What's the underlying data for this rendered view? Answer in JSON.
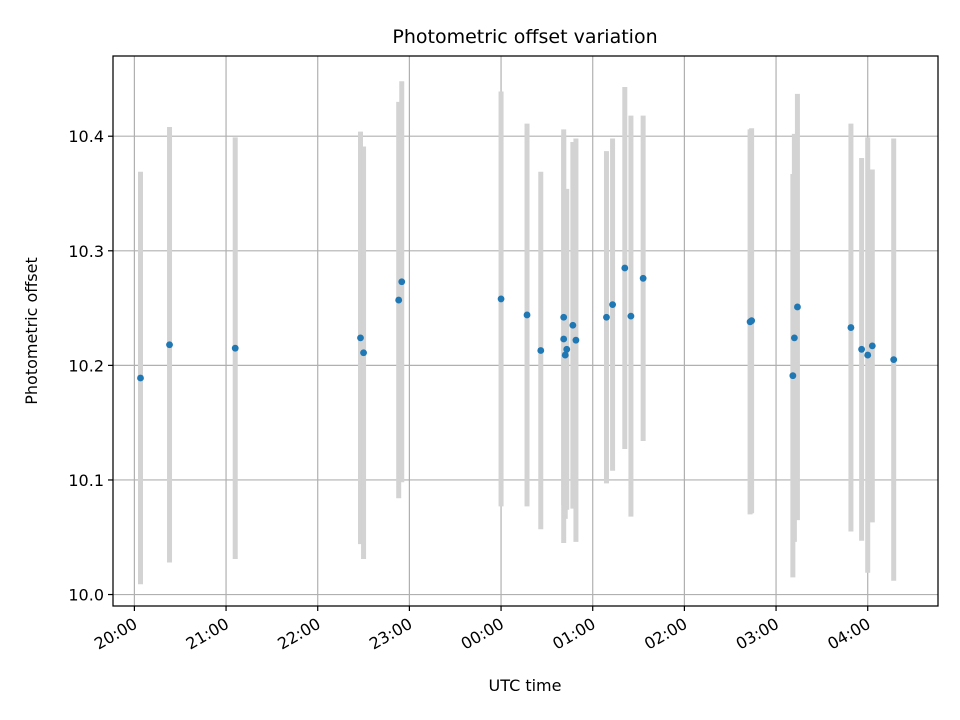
{
  "chart_data": {
    "type": "scatter",
    "title": "Photometric offset variation",
    "xlabel": "UTC time",
    "ylabel": "Photometric offset",
    "grid": true,
    "legend": "none",
    "x_unit": "UTC clock time",
    "xlim": [
      "19:46",
      "04:46"
    ],
    "ylim": [
      9.99,
      10.47
    ],
    "xticks": [
      "20:00",
      "21:00",
      "22:00",
      "23:00",
      "00:00",
      "01:00",
      "02:00",
      "03:00",
      "04:00"
    ],
    "yticks": [
      "10.0",
      "10.1",
      "10.2",
      "10.3",
      "10.4"
    ],
    "marker_color": "#1f77b4",
    "errorbar_color": "#d3d3d3",
    "series": [
      {
        "points": [
          {
            "x": "20:04",
            "y": 10.189,
            "yerr": 0.18
          },
          {
            "x": "20:23",
            "y": 10.218,
            "yerr": 0.19
          },
          {
            "x": "21:06",
            "y": 10.215,
            "yerr": 0.184
          },
          {
            "x": "22:28",
            "y": 10.224,
            "yerr": 0.18
          },
          {
            "x": "22:30",
            "y": 10.211,
            "yerr": 0.18
          },
          {
            "x": "22:53",
            "y": 10.257,
            "yerr": 0.173
          },
          {
            "x": "22:55",
            "y": 10.273,
            "yerr": 0.175
          },
          {
            "x": "00:00",
            "y": 10.258,
            "yerr": 0.181
          },
          {
            "x": "00:17",
            "y": 10.244,
            "yerr": 0.167
          },
          {
            "x": "00:26",
            "y": 10.213,
            "yerr": 0.156
          },
          {
            "x": "00:41",
            "y": 10.242,
            "yerr": 0.164
          },
          {
            "x": "00:41",
            "y": 10.223,
            "yerr": 0.178
          },
          {
            "x": "00:42",
            "y": 10.209,
            "yerr": 0.143
          },
          {
            "x": "00:43",
            "y": 10.214,
            "yerr": 0.14
          },
          {
            "x": "00:47",
            "y": 10.235,
            "yerr": 0.16
          },
          {
            "x": "00:49",
            "y": 10.222,
            "yerr": 0.176
          },
          {
            "x": "01:09",
            "y": 10.242,
            "yerr": 0.145
          },
          {
            "x": "01:13",
            "y": 10.253,
            "yerr": 0.145
          },
          {
            "x": "01:21",
            "y": 10.285,
            "yerr": 0.158
          },
          {
            "x": "01:25",
            "y": 10.243,
            "yerr": 0.175
          },
          {
            "x": "01:33",
            "y": 10.276,
            "yerr": 0.142
          },
          {
            "x": "02:43",
            "y": 10.238,
            "yerr": 0.168
          },
          {
            "x": "02:44",
            "y": 10.239,
            "yerr": 0.168
          },
          {
            "x": "03:11",
            "y": 10.191,
            "yerr": 0.176
          },
          {
            "x": "03:12",
            "y": 10.224,
            "yerr": 0.178
          },
          {
            "x": "03:14",
            "y": 10.251,
            "yerr": 0.186
          },
          {
            "x": "03:49",
            "y": 10.233,
            "yerr": 0.178
          },
          {
            "x": "03:56",
            "y": 10.214,
            "yerr": 0.167
          },
          {
            "x": "04:00",
            "y": 10.209,
            "yerr": 0.19
          },
          {
            "x": "04:03",
            "y": 10.217,
            "yerr": 0.154
          },
          {
            "x": "04:17",
            "y": 10.205,
            "yerr": 0.193
          }
        ]
      }
    ]
  }
}
